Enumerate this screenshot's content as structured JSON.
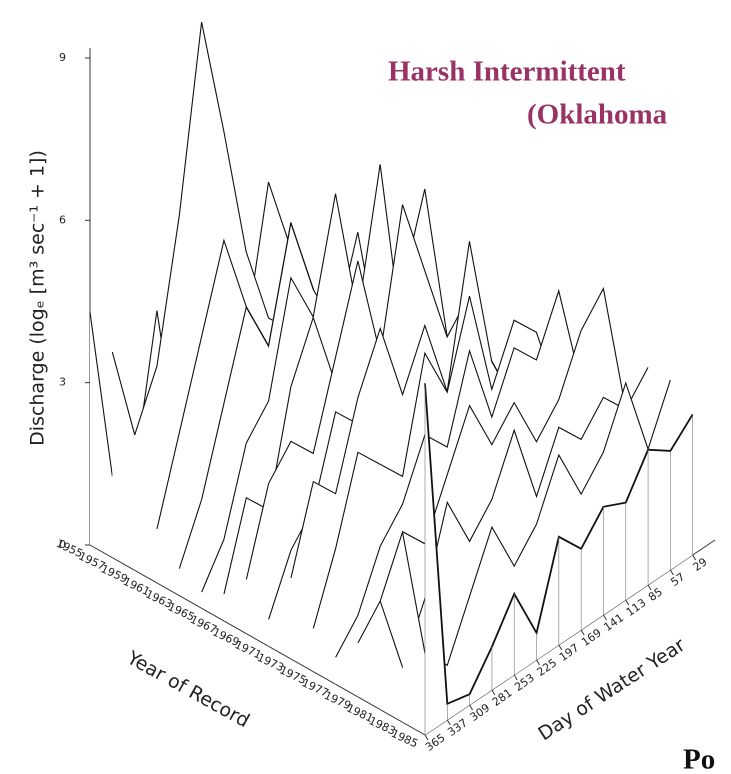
{
  "chart_data": {
    "type": "waterfall3d",
    "title_lines": [
      "Harsh Intermittent",
      "(Oklahoma"
    ],
    "footer": "Po",
    "z_label": "Discharge (logₑ [m³ sec⁻¹ + 1])",
    "y_label": "Year of Record",
    "x_label": "Day of Water Year",
    "x": [
      365,
      337,
      309,
      281,
      253,
      225,
      197,
      169,
      141,
      113,
      85,
      57,
      29
    ],
    "xticks": [
      365,
      337,
      309,
      281,
      253,
      225,
      197,
      169,
      141,
      113,
      85,
      57,
      29
    ],
    "xlim": [
      365,
      1
    ],
    "zlim": [
      0,
      9
    ],
    "zticks": [
      0,
      3,
      6,
      9
    ],
    "color": "#111111",
    "series": [
      {
        "name": "1955",
        "values": [
          4.3,
          1.0,
          0.8,
          3.5,
          0.5,
          0.3,
          3.0,
          0.5,
          0.2,
          1.0,
          0.5,
          0.3,
          0.2
        ]
      },
      {
        "name": "1957",
        "values": [
          3.8,
          2.0,
          1.5,
          2.5,
          4.0,
          3.0,
          2.5,
          5.0,
          3.5,
          2.0,
          1.5,
          1.0,
          0.8
        ]
      },
      {
        "name": "1959",
        "values": [
          2.5,
          3.5,
          6.0,
          9.3,
          7.0,
          4.5,
          3.0,
          2.5,
          2.0,
          1.5,
          1.0,
          0.8,
          0.6
        ]
      },
      {
        "name": "1961",
        "values": [
          1.0,
          2.5,
          4.0,
          5.5,
          4.0,
          3.0,
          5.0,
          3.5,
          2.0,
          1.5,
          1.0,
          0.7,
          0.5
        ]
      },
      {
        "name": "1963",
        "values": [
          0.5,
          1.5,
          3.0,
          4.5,
          3.5,
          5.5,
          4.0,
          3.0,
          4.5,
          2.0,
          1.2,
          0.8,
          0.6
        ]
      },
      {
        "name": "1965",
        "values": [
          0.3,
          1.0,
          2.5,
          3.0,
          5.0,
          4.0,
          6.0,
          3.5,
          2.5,
          1.5,
          1.0,
          0.8,
          0.5
        ]
      },
      {
        "name": "1967",
        "values": [
          0.5,
          2.0,
          1.5,
          3.5,
          4.5,
          3.0,
          4.0,
          6.5,
          3.0,
          2.0,
          1.5,
          1.0,
          0.7
        ]
      },
      {
        "name": "1969",
        "values": [
          1.0,
          2.5,
          3.0,
          2.5,
          4.0,
          5.5,
          3.5,
          4.5,
          6.0,
          3.0,
          2.0,
          1.2,
          0.9
        ]
      },
      {
        "name": "1971",
        "values": [
          0.5,
          1.5,
          2.0,
          3.5,
          3.0,
          4.0,
          6.5,
          5.0,
          3.5,
          4.0,
          2.5,
          1.5,
          1.0
        ]
      },
      {
        "name": "1973",
        "values": [
          1.5,
          3.0,
          2.5,
          4.0,
          5.0,
          3.5,
          4.5,
          3.0,
          5.5,
          3.0,
          2.0,
          1.5,
          1.2
        ]
      },
      {
        "name": "1975",
        "values": [
          0.8,
          2.0,
          3.5,
          3.0,
          2.5,
          4.5,
          3.5,
          5.0,
          3.0,
          4.0,
          3.5,
          2.0,
          1.5
        ]
      },
      {
        "name": "1977",
        "values": [
          0.5,
          1.0,
          2.0,
          2.5,
          3.5,
          3.0,
          4.5,
          3.0,
          4.0,
          3.5,
          4.5,
          2.5,
          2.0
        ]
      },
      {
        "name": "1979",
        "values": [
          1.0,
          1.5,
          2.5,
          2.0,
          3.0,
          4.0,
          3.0,
          3.5,
          2.5,
          3.0,
          4.0,
          4.5,
          2.0
        ]
      },
      {
        "name": "1981",
        "values": [
          2.0,
          0.5,
          1.5,
          3.0,
          2.0,
          2.5,
          3.5,
          2.0,
          3.0,
          2.5,
          3.0,
          2.5,
          3.0
        ]
      },
      {
        "name": "1983",
        "values": [
          3.5,
          1.0,
          0.5,
          1.5,
          2.5,
          1.5,
          2.0,
          3.0,
          2.0,
          2.5,
          3.5,
          2.0,
          3.0
        ]
      },
      {
        "name": "1985",
        "values": [
          6.5,
          0.3,
          0.2,
          0.8,
          1.5,
          0.5,
          2.0,
          1.5,
          2.0,
          1.8,
          2.5,
          2.2,
          2.6
        ]
      }
    ]
  }
}
